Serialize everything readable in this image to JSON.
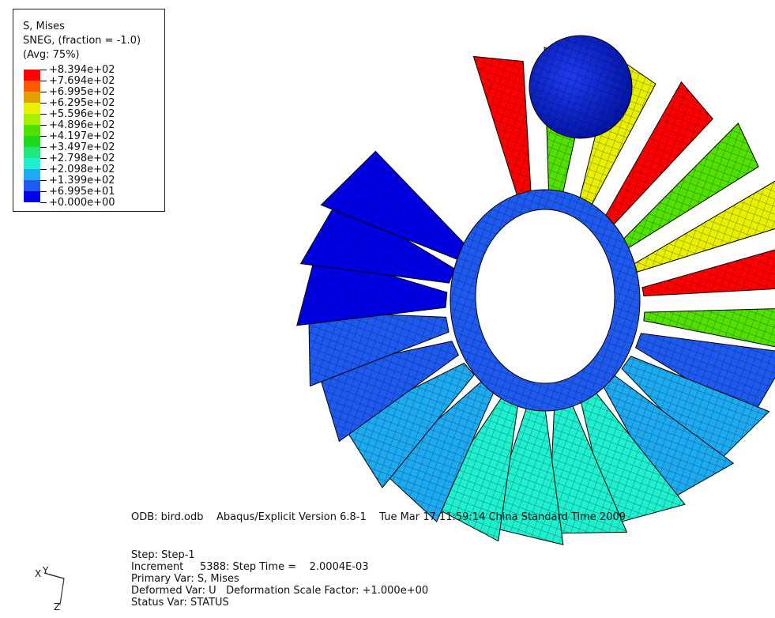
{
  "legend": {
    "title": "S, Mises",
    "subtitle": "SNEG, (fraction = -1.0)",
    "averaging": "(Avg: 75%)",
    "levels": [
      "+8.394e+02",
      "+7.694e+02",
      "+6.995e+02",
      "+6.295e+02",
      "+5.596e+02",
      "+4.896e+02",
      "+4.197e+02",
      "+3.497e+02",
      "+2.798e+02",
      "+2.098e+02",
      "+1.399e+02",
      "+6.995e+01",
      "+0.000e+00"
    ],
    "colors": [
      "#ff0000",
      "#ff5a00",
      "#e0a000",
      "#e8f000",
      "#a8f000",
      "#52e000",
      "#1ed81e",
      "#1ee87a",
      "#1ef0d0",
      "#1eaaf0",
      "#1e5af0",
      "#0000e8"
    ]
  },
  "info": {
    "odb": "ODB: bird.odb    Abaqus/Explicit Version 6.8-1    Tue Mar 17 11:59:14 China Standard Time 2009",
    "step": "Step: Step-1",
    "increment": "Increment     5388: Step Time =    2.0004E-03",
    "primary": "Primary Var: S, Mises",
    "deformed": "Deformed Var: U   Deformation Scale Factor: +1.000e+00",
    "status": "Status Var: STATUS"
  },
  "triad": {
    "x": "X",
    "y": "Y",
    "z": "Z"
  }
}
